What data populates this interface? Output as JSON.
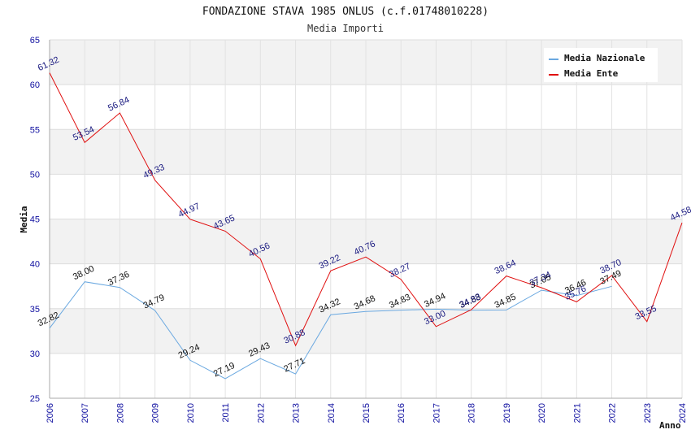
{
  "chart_data": {
    "type": "line",
    "title": "FONDAZIONE STAVA 1985 ONLUS (c.f.01748010228)",
    "subtitle": "Media Importi",
    "xlabel": "Anno",
    "ylabel": "Media",
    "ylim": [
      25,
      65
    ],
    "yticks": [
      25,
      30,
      35,
      40,
      45,
      50,
      55,
      60,
      65
    ],
    "categories": [
      "2006",
      "2007",
      "2008",
      "2009",
      "2010",
      "2011",
      "2012",
      "2013",
      "2014",
      "2015",
      "2016",
      "2017",
      "2018",
      "2019",
      "2020",
      "2021",
      "2022",
      "2023",
      "2024"
    ],
    "legend_position": "top-right",
    "series": [
      {
        "name": "Media Nazionale",
        "color": "#6aa8e0",
        "label_color": "#111111",
        "values": [
          32.82,
          38.0,
          37.36,
          34.79,
          29.24,
          27.19,
          29.43,
          27.71,
          34.32,
          34.68,
          34.83,
          34.94,
          34.83,
          34.85,
          37.05,
          36.46,
          37.49,
          null,
          null
        ],
        "labels": [
          "32.82",
          "38.00",
          "37.36",
          "34.79",
          "29.24",
          "27.19",
          "29.43",
          "27.71",
          "34.32",
          "34.68",
          "34.83",
          "34.94",
          "34.83",
          "34.85",
          "37.05",
          "36.46",
          "37.49",
          "",
          ""
        ]
      },
      {
        "name": "Media Ente",
        "color": "#e01010",
        "label_color": "#1a1a80",
        "values": [
          61.32,
          53.54,
          56.84,
          49.33,
          44.97,
          43.65,
          40.56,
          30.88,
          39.22,
          40.76,
          38.27,
          33.0,
          34.88,
          38.64,
          37.34,
          35.76,
          38.7,
          33.55,
          44.58
        ],
        "labels": [
          "61.32",
          "53.54",
          "56.84",
          "49.33",
          "44.97",
          "43.65",
          "40.56",
          "30.88",
          "39.22",
          "40.76",
          "38.27",
          "33.00",
          "34.88",
          "38.64",
          "37.34",
          "35.76",
          "38.70",
          "33.55",
          "44.58"
        ]
      }
    ]
  }
}
